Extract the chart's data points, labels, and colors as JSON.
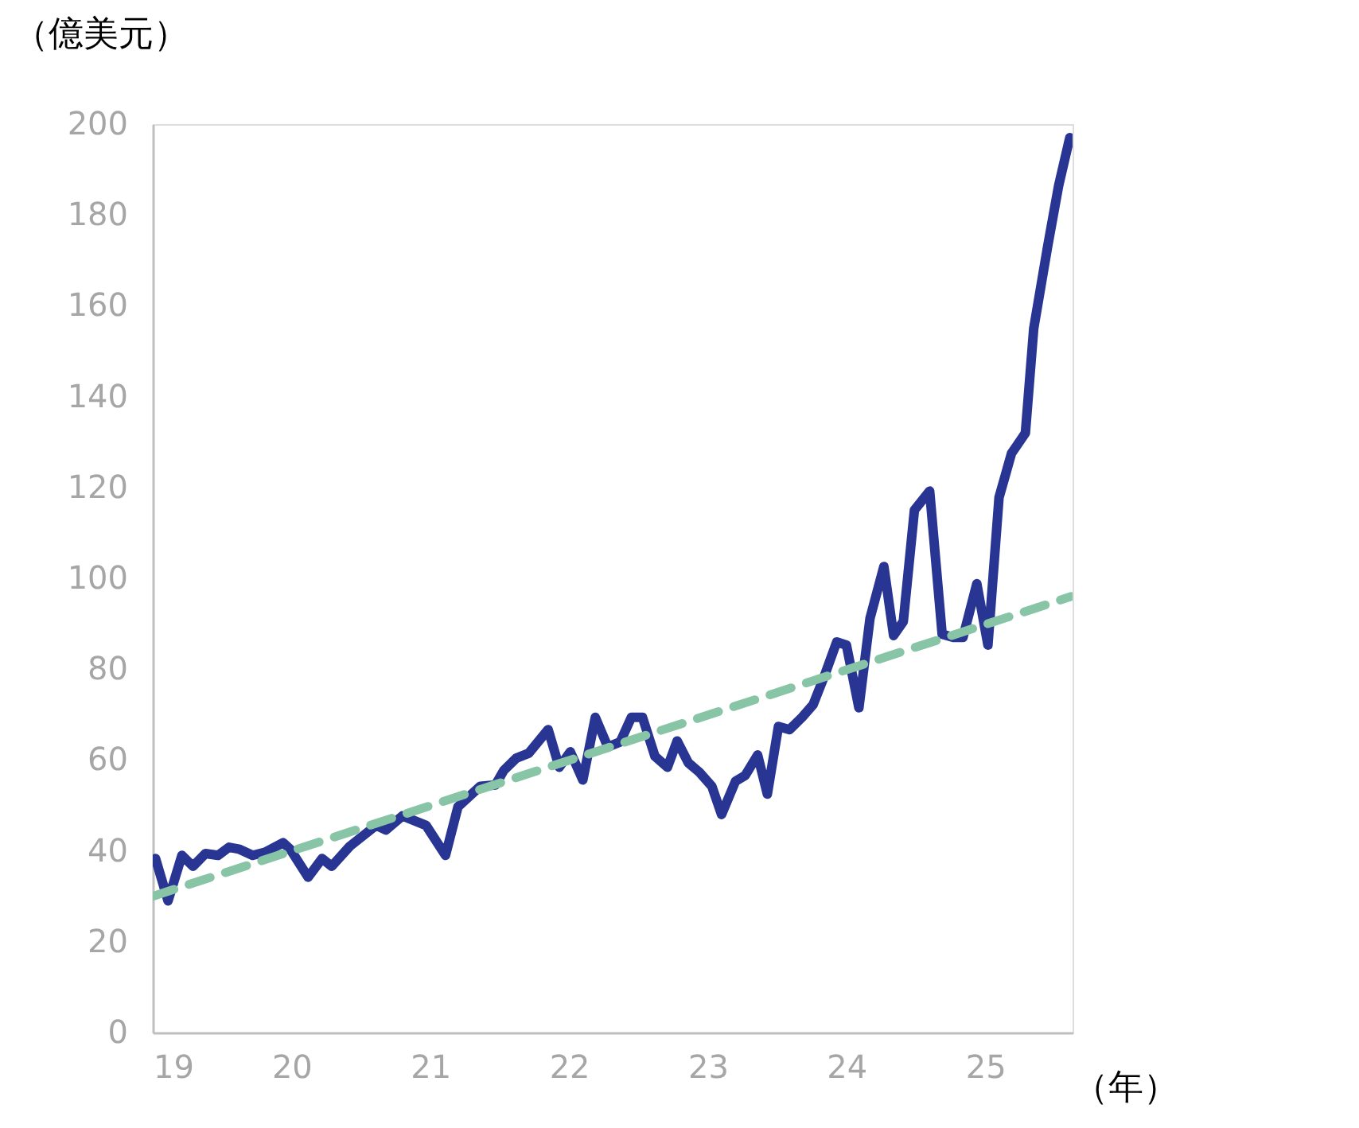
{
  "chart_data": {
    "type": "line",
    "ylabel": "（億美元）",
    "xlabel": "（年）",
    "xlim": [
      19,
      25.63
    ],
    "xticks": [
      19,
      20,
      21,
      22,
      23,
      24,
      25
    ],
    "ylim": [
      0,
      200
    ],
    "yticks": [
      0,
      20,
      40,
      60,
      80,
      100,
      120,
      140,
      160,
      180,
      200
    ],
    "grid": false,
    "marker": "none",
    "series": [
      {
        "color": "#283593",
        "line_style": "solid",
        "x": [
          19.02,
          19.11,
          19.21,
          19.29,
          19.38,
          19.47,
          19.55,
          19.62,
          19.72,
          19.81,
          19.94,
          19.99,
          20.12,
          20.22,
          20.29,
          20.42,
          20.61,
          20.68,
          20.8,
          20.97,
          21.11,
          21.2,
          21.36,
          21.47,
          21.53,
          21.62,
          21.71,
          21.85,
          21.93,
          22.01,
          22.1,
          22.19,
          22.28,
          22.37,
          22.45,
          22.53,
          22.62,
          22.71,
          22.78,
          22.86,
          22.94,
          23.03,
          23.1,
          23.2,
          23.27,
          23.36,
          23.43,
          23.51,
          23.59,
          23.68,
          23.76,
          23.84,
          23.93,
          24.0,
          24.09,
          24.17,
          24.27,
          24.34,
          24.41,
          24.49,
          24.6,
          24.69,
          24.77,
          24.84,
          24.94,
          25.02,
          25.1,
          25.19,
          25.29,
          25.35,
          25.45,
          25.53,
          25.61
        ],
        "values": [
          38.3,
          29,
          39,
          36.6,
          39.4,
          39,
          40.8,
          40.4,
          39,
          39.7,
          41.8,
          40.4,
          34.2,
          38.3,
          36.6,
          41,
          45.6,
          44.6,
          47.7,
          45.6,
          39,
          49.7,
          54.2,
          54.5,
          57.7,
          60.4,
          61.5,
          66.7,
          58.4,
          61.8,
          55.6,
          69.4,
          62.9,
          64,
          69.4,
          69.4,
          60.8,
          58.4,
          64.2,
          59.4,
          57.3,
          54.2,
          48,
          55.3,
          56.6,
          61.1,
          52.5,
          67.4,
          66.7,
          69.4,
          72.2,
          78.4,
          86,
          85.3,
          71.5,
          91.2,
          102.6,
          87.4,
          90.5,
          115,
          119.2,
          87.7,
          87,
          87,
          98.8,
          85.3,
          117.8,
          127.5,
          132,
          155,
          173,
          186.5,
          197
        ]
      },
      {
        "color": "#88c4a6",
        "line_style": "dashed",
        "x": [
          19,
          25.62
        ],
        "values": [
          30,
          96
        ]
      }
    ]
  }
}
